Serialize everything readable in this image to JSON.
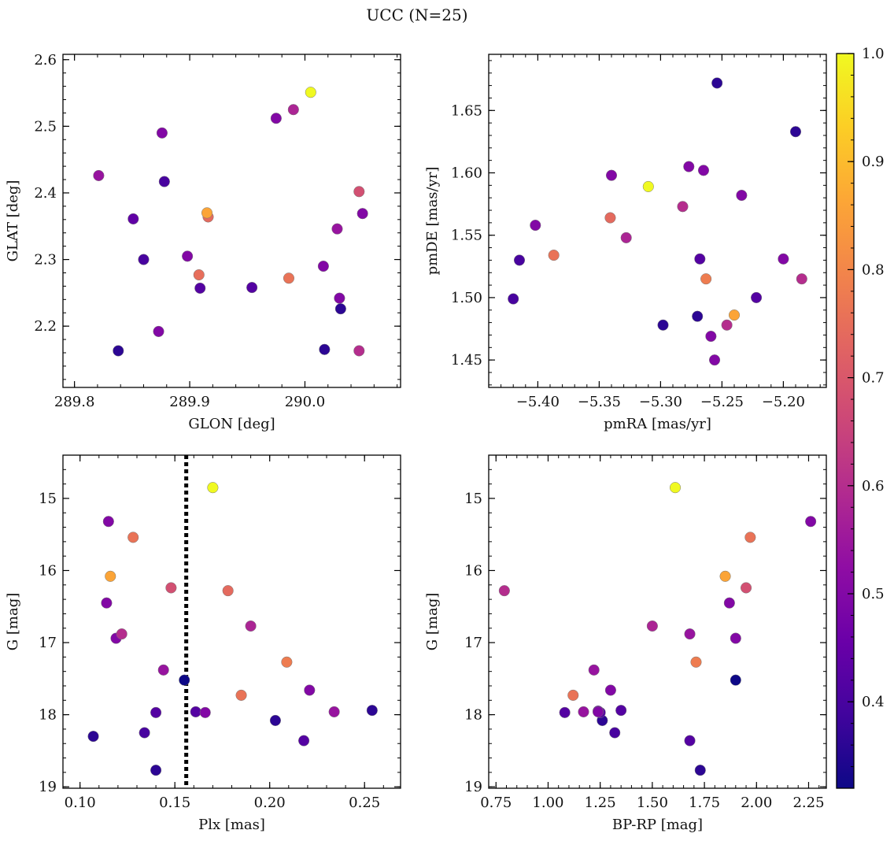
{
  "figure": {
    "title": "UCC (N=25)"
  },
  "colormap": {
    "name": "plasma",
    "range": [
      0.32,
      1.0
    ],
    "ticks": [
      0.4,
      0.5,
      0.6,
      0.7,
      0.8,
      0.9,
      1.0
    ],
    "tick_labels": [
      "0.4",
      "0.5",
      "0.6",
      "0.7",
      "0.8",
      "0.9",
      "1.0"
    ]
  },
  "chart_data": [
    {
      "type": "scatter",
      "xlabel": "GLON [deg]",
      "ylabel": "GLAT [deg]",
      "xlim": [
        289.79,
        290.083
      ],
      "ylim": [
        2.108,
        2.608
      ],
      "invert_y": false,
      "xticks": [
        289.8,
        289.9,
        290.0
      ],
      "xtick_labels": [
        "289.8",
        "289.9",
        "290.0"
      ],
      "yticks": [
        2.2,
        2.3,
        2.4,
        2.5,
        2.6
      ],
      "ytick_labels": [
        "2.2",
        "2.3",
        "2.4",
        "2.5",
        "2.6"
      ],
      "x": [
        290.005,
        289.99,
        289.975,
        289.876,
        289.821,
        289.878,
        290.047,
        289.915,
        289.916,
        290.05,
        289.851,
        290.028,
        289.86,
        289.898,
        290.016,
        289.908,
        289.986,
        289.909,
        289.954,
        290.03,
        290.031,
        289.873,
        289.838,
        290.017,
        290.047
      ],
      "y": [
        2.551,
        2.525,
        2.512,
        2.49,
        2.426,
        2.417,
        2.402,
        2.37,
        2.364,
        2.369,
        2.361,
        2.346,
        2.3,
        2.305,
        2.29,
        2.277,
        2.272,
        2.257,
        2.258,
        2.242,
        2.226,
        2.192,
        2.163,
        2.165,
        2.163
      ],
      "color_value": [
        1.0,
        0.58,
        0.5,
        0.5,
        0.54,
        0.4,
        0.68,
        0.86,
        0.74,
        0.5,
        0.44,
        0.54,
        0.4,
        0.5,
        0.5,
        0.75,
        0.76,
        0.42,
        0.42,
        0.5,
        0.36,
        0.5,
        0.36,
        0.36,
        0.6
      ]
    },
    {
      "type": "scatter",
      "xlabel": "pmRA [mas/yr]",
      "ylabel": "pmDE [mas/yr]",
      "xlim": [
        -5.44,
        -5.165
      ],
      "ylim": [
        1.428,
        1.695
      ],
      "invert_y": false,
      "xticks": [
        -5.4,
        -5.35,
        -5.3,
        -5.25,
        -5.2
      ],
      "xtick_labels": [
        "−5.40",
        "−5.35",
        "−5.30",
        "−5.25",
        "−5.20"
      ],
      "yticks": [
        1.45,
        1.5,
        1.55,
        1.6,
        1.65
      ],
      "ytick_labels": [
        "1.45",
        "1.50",
        "1.55",
        "1.60",
        "1.65"
      ],
      "x": [
        -5.254,
        -5.19,
        -5.31,
        -5.34,
        -5.277,
        -5.265,
        -5.234,
        -5.282,
        -5.402,
        -5.341,
        -5.328,
        -5.415,
        -5.387,
        -5.268,
        -5.2,
        -5.185,
        -5.263,
        -5.222,
        -5.42,
        -5.24,
        -5.298,
        -5.27,
        -5.246,
        -5.259,
        -5.256
      ],
      "y": [
        1.672,
        1.633,
        1.589,
        1.598,
        1.605,
        1.602,
        1.582,
        1.573,
        1.558,
        1.564,
        1.548,
        1.53,
        1.534,
        1.531,
        1.531,
        1.515,
        1.515,
        1.5,
        1.499,
        1.486,
        1.478,
        1.485,
        1.478,
        1.469,
        1.45
      ],
      "color_value": [
        0.36,
        0.36,
        1.0,
        0.5,
        0.5,
        0.5,
        0.5,
        0.6,
        0.5,
        0.74,
        0.58,
        0.4,
        0.76,
        0.42,
        0.5,
        0.6,
        0.78,
        0.42,
        0.4,
        0.86,
        0.36,
        0.36,
        0.6,
        0.5,
        0.5
      ]
    },
    {
      "type": "scatter",
      "xlabel": "Plx [mas]",
      "ylabel": "G [mag]",
      "xlim": [
        0.091,
        0.269
      ],
      "ylim": [
        19.02,
        14.4
      ],
      "invert_y": true,
      "xticks": [
        0.1,
        0.15,
        0.2,
        0.25
      ],
      "xtick_labels": [
        "0.10",
        "0.15",
        "0.20",
        "0.25"
      ],
      "yticks": [
        15,
        16,
        17,
        18,
        19
      ],
      "ytick_labels": [
        "15",
        "16",
        "17",
        "18",
        "19"
      ],
      "vline_x": 0.156,
      "x": [
        0.17,
        0.115,
        0.128,
        0.116,
        0.148,
        0.178,
        0.114,
        0.19,
        0.122,
        0.119,
        0.209,
        0.144,
        0.155,
        0.221,
        0.185,
        0.254,
        0.234,
        0.14,
        0.161,
        0.166,
        0.203,
        0.107,
        0.134,
        0.218,
        0.14
      ],
      "y": [
        14.85,
        15.32,
        15.54,
        16.08,
        16.24,
        16.28,
        16.45,
        16.77,
        16.88,
        16.94,
        17.27,
        17.38,
        17.52,
        17.66,
        17.73,
        17.94,
        17.96,
        17.97,
        17.96,
        17.97,
        18.08,
        18.3,
        18.25,
        18.36,
        18.77
      ],
      "color_value": [
        1.0,
        0.5,
        0.76,
        0.86,
        0.68,
        0.74,
        0.5,
        0.58,
        0.6,
        0.5,
        0.78,
        0.54,
        0.32,
        0.5,
        0.76,
        0.36,
        0.54,
        0.42,
        0.42,
        0.5,
        0.36,
        0.36,
        0.4,
        0.42,
        0.36
      ]
    },
    {
      "type": "scatter",
      "xlabel": "BP-RP [mag]",
      "ylabel": "G [mag]",
      "xlim": [
        0.715,
        2.335
      ],
      "ylim": [
        19.02,
        14.4
      ],
      "invert_y": true,
      "xticks": [
        0.75,
        1.0,
        1.25,
        1.5,
        1.75,
        2.0,
        2.25
      ],
      "xtick_labels": [
        "0.75",
        "1.00",
        "1.25",
        "1.50",
        "1.75",
        "2.00",
        "2.25"
      ],
      "yticks": [
        15,
        16,
        17,
        18,
        19
      ],
      "ytick_labels": [
        "15",
        "16",
        "17",
        "18",
        "19"
      ],
      "x": [
        1.61,
        2.26,
        1.97,
        1.85,
        1.95,
        0.79,
        1.87,
        1.5,
        1.68,
        1.9,
        1.71,
        1.22,
        1.9,
        1.3,
        1.12,
        1.35,
        1.17,
        1.08,
        1.24,
        1.25,
        1.26,
        1.32,
        1.68,
        1.73,
        1.24
      ],
      "y": [
        14.85,
        15.32,
        15.54,
        16.08,
        16.24,
        16.28,
        16.45,
        16.77,
        16.88,
        16.94,
        17.27,
        17.38,
        17.52,
        17.66,
        17.73,
        17.94,
        17.96,
        17.97,
        17.96,
        17.97,
        18.08,
        18.25,
        18.36,
        18.77,
        17.95
      ],
      "color_value": [
        1.0,
        0.5,
        0.76,
        0.86,
        0.68,
        0.6,
        0.5,
        0.58,
        0.54,
        0.5,
        0.78,
        0.54,
        0.32,
        0.5,
        0.76,
        0.42,
        0.54,
        0.42,
        0.5,
        0.42,
        0.36,
        0.4,
        0.42,
        0.36,
        0.42
      ]
    }
  ]
}
